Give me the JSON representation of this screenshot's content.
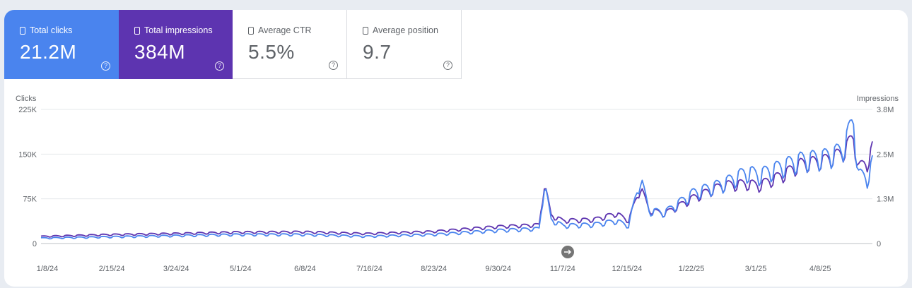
{
  "tiles": [
    {
      "label": "Total clicks",
      "value": "21.2M",
      "color": "#4a84ee",
      "icon": "checkbox-icon"
    },
    {
      "label": "Total impressions",
      "value": "384M",
      "color": "#5d34b0",
      "icon": "checkbox-icon"
    },
    {
      "label": "Average CTR",
      "value": "5.5%",
      "icon": "checkbox-icon"
    },
    {
      "label": "Average position",
      "value": "9.7",
      "icon": "checkbox-icon"
    }
  ],
  "help_icon": "help-circle-icon",
  "chart_data": {
    "type": "line",
    "y_left_label": "Clicks",
    "y_right_label": "Impressions",
    "y_left_ticks": [
      "225K",
      "150K",
      "75K",
      "0"
    ],
    "y_left_range": [
      0,
      225000
    ],
    "y_right_ticks": [
      "3.8M",
      "2.5M",
      "1.3M",
      "0"
    ],
    "y_right_range": [
      0,
      3800000
    ],
    "x_labels": [
      "1/8/24",
      "2/15/24",
      "3/24/24",
      "5/1/24",
      "6/8/24",
      "7/16/24",
      "8/23/24",
      "9/30/24",
      "11/7/24",
      "12/15/24",
      "1/22/25",
      "3/1/25",
      "4/8/25"
    ],
    "x_range": [
      "2024-01-08",
      "2025-05-06"
    ],
    "grid": true,
    "series": [
      {
        "name": "Clicks",
        "axis": "left",
        "color": "#4a84ee",
        "points": [
          [
            "2024-01-08",
            9000
          ],
          [
            "2024-02-15",
            11000
          ],
          [
            "2024-03-24",
            13000
          ],
          [
            "2024-05-01",
            15000
          ],
          [
            "2024-06-08",
            15000
          ],
          [
            "2024-07-16",
            12000
          ],
          [
            "2024-08-23",
            15000
          ],
          [
            "2024-09-30",
            22000
          ],
          [
            "2024-10-24",
            25000
          ],
          [
            "2024-10-27",
            100000
          ],
          [
            "2024-10-31",
            40000
          ],
          [
            "2024-11-07",
            30000
          ],
          [
            "2024-11-25",
            32000
          ],
          [
            "2024-12-08",
            38000
          ],
          [
            "2024-12-15",
            30000
          ],
          [
            "2024-12-22",
            110000
          ],
          [
            "2024-12-27",
            55000
          ],
          [
            "2025-01-05",
            52000
          ],
          [
            "2025-01-22",
            85000
          ],
          [
            "2025-02-08",
            100000
          ],
          [
            "2025-02-22",
            120000
          ],
          [
            "2025-03-01",
            115000
          ],
          [
            "2025-03-15",
            130000
          ],
          [
            "2025-03-25",
            140000
          ],
          [
            "2025-04-08",
            145000
          ],
          [
            "2025-04-18",
            155000
          ],
          [
            "2025-04-25",
            205000
          ],
          [
            "2025-04-28",
            115000
          ],
          [
            "2025-05-03",
            110000
          ],
          [
            "2025-05-06",
            135000
          ]
        ]
      },
      {
        "name": "Impressions",
        "axis": "right",
        "color": "#5d34b0",
        "points": [
          [
            "2024-01-08",
            200000
          ],
          [
            "2024-02-15",
            250000
          ],
          [
            "2024-03-24",
            280000
          ],
          [
            "2024-05-01",
            320000
          ],
          [
            "2024-06-08",
            330000
          ],
          [
            "2024-07-16",
            280000
          ],
          [
            "2024-08-23",
            340000
          ],
          [
            "2024-09-30",
            480000
          ],
          [
            "2024-10-24",
            530000
          ],
          [
            "2024-10-27",
            1700000
          ],
          [
            "2024-10-31",
            800000
          ],
          [
            "2024-11-07",
            650000
          ],
          [
            "2024-11-25",
            680000
          ],
          [
            "2024-12-08",
            850000
          ],
          [
            "2024-12-15",
            650000
          ],
          [
            "2024-12-22",
            1600000
          ],
          [
            "2024-12-27",
            950000
          ],
          [
            "2025-01-05",
            850000
          ],
          [
            "2025-01-22",
            1300000
          ],
          [
            "2025-02-08",
            1650000
          ],
          [
            "2025-02-22",
            1700000
          ],
          [
            "2025-03-01",
            1650000
          ],
          [
            "2025-03-15",
            1950000
          ],
          [
            "2025-03-25",
            2250000
          ],
          [
            "2025-04-08",
            2350000
          ],
          [
            "2025-04-18",
            2550000
          ],
          [
            "2025-04-25",
            3000000
          ],
          [
            "2025-04-28",
            2150000
          ],
          [
            "2025-05-03",
            2300000
          ],
          [
            "2025-05-06",
            2700000
          ]
        ]
      }
    ]
  }
}
